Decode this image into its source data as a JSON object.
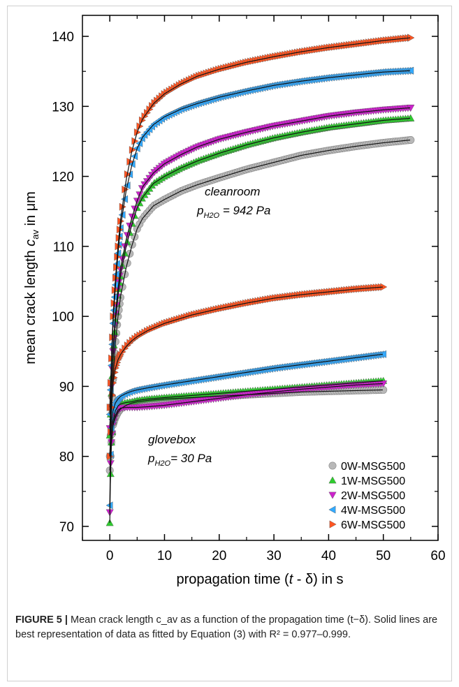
{
  "chart_data": {
    "type": "scatter",
    "xlabel": "propagation time (t - δ) in s",
    "ylabel": "mean crack length c_av in μm",
    "xlim": [
      -5,
      60
    ],
    "ylim": [
      68,
      143
    ],
    "xticks": [
      "0",
      "10",
      "20",
      "30",
      "40",
      "50",
      "60"
    ],
    "yticks": [
      "70",
      "80",
      "90",
      "100",
      "110",
      "120",
      "130",
      "140"
    ],
    "legend_position": "bottom-right",
    "annotations": [
      {
        "label": "cleanroom",
        "sub": "p_H2O = 942 Pa"
      },
      {
        "label": "glovebox",
        "sub": "p_H2O = 30 Pa"
      }
    ],
    "series": [
      {
        "name": "0W-MSG500",
        "marker": "circle",
        "color": "#b8b8b8",
        "groups": [
          {
            "condition": "cleanroom",
            "x_end": 55,
            "points": [
              [
                0,
                80
              ],
              [
                0.3,
                86
              ],
              [
                0.6,
                91
              ],
              [
                1,
                96
              ],
              [
                1.5,
                100
              ],
              [
                2,
                103
              ],
              [
                3,
                107
              ],
              [
                4,
                110
              ],
              [
                5,
                112.5
              ],
              [
                6,
                114
              ],
              [
                8,
                115.8
              ],
              [
                10,
                116.7
              ],
              [
                13,
                117.9
              ],
              [
                16,
                118.8
              ],
              [
                20,
                119.8
              ],
              [
                25,
                121
              ],
              [
                30,
                122
              ],
              [
                35,
                123
              ],
              [
                40,
                123.7
              ],
              [
                45,
                124.3
              ],
              [
                50,
                124.8
              ],
              [
                55,
                125.2
              ]
            ]
          },
          {
            "condition": "glovebox",
            "x_end": 50,
            "points": [
              [
                0,
                78
              ],
              [
                0.3,
                82
              ],
              [
                0.6,
                84.5
              ],
              [
                1,
                85.5
              ],
              [
                1.5,
                86.3
              ],
              [
                2,
                86.8
              ],
              [
                3,
                87.3
              ],
              [
                4,
                87.6
              ],
              [
                5,
                87.8
              ],
              [
                7,
                88
              ],
              [
                10,
                88.2
              ],
              [
                15,
                88.4
              ],
              [
                20,
                88.6
              ],
              [
                25,
                88.8
              ],
              [
                30,
                89
              ],
              [
                35,
                89.2
              ],
              [
                40,
                89.3
              ],
              [
                45,
                89.4
              ],
              [
                50,
                89.5
              ]
            ]
          }
        ]
      },
      {
        "name": "1W-MSG500",
        "marker": "triangle-up",
        "color": "#2ecc2e",
        "groups": [
          {
            "condition": "cleanroom",
            "x_end": 55,
            "points": [
              [
                0,
                83
              ],
              [
                0.3,
                89
              ],
              [
                0.6,
                94
              ],
              [
                1,
                99
              ],
              [
                1.5,
                103
              ],
              [
                2,
                106
              ],
              [
                3,
                110
              ],
              [
                4,
                113
              ],
              [
                5,
                115.5
              ],
              [
                6,
                117
              ],
              [
                8,
                119
              ],
              [
                10,
                120
              ],
              [
                13,
                121.2
              ],
              [
                16,
                122.2
              ],
              [
                20,
                123.3
              ],
              [
                25,
                124.5
              ],
              [
                30,
                125.5
              ],
              [
                35,
                126.3
              ],
              [
                40,
                127
              ],
              [
                45,
                127.5
              ],
              [
                50,
                128
              ],
              [
                55,
                128.3
              ]
            ]
          },
          {
            "condition": "glovebox",
            "x_end": 50,
            "points": [
              [
                0,
                70.5
              ],
              [
                0.1,
                76
              ],
              [
                0.3,
                82
              ],
              [
                0.6,
                85
              ],
              [
                1,
                86.5
              ],
              [
                1.5,
                87.2
              ],
              [
                2,
                87.5
              ],
              [
                3,
                87.7
              ],
              [
                4,
                87.8
              ],
              [
                5,
                88
              ],
              [
                7,
                88.2
              ],
              [
                10,
                88.4
              ],
              [
                15,
                88.7
              ],
              [
                20,
                89
              ],
              [
                25,
                89.3
              ],
              [
                30,
                89.6
              ],
              [
                35,
                89.9
              ],
              [
                40,
                90.2
              ],
              [
                45,
                90.5
              ],
              [
                50,
                90.8
              ]
            ]
          }
        ]
      },
      {
        "name": "2W-MSG500",
        "marker": "triangle-down",
        "color": "#cc22cc",
        "groups": [
          {
            "condition": "cleanroom",
            "x_end": 55,
            "points": [
              [
                0,
                84
              ],
              [
                0.3,
                90
              ],
              [
                0.6,
                95
              ],
              [
                1,
                100
              ],
              [
                1.5,
                104
              ],
              [
                2,
                107
              ],
              [
                3,
                111
              ],
              [
                4,
                114
              ],
              [
                5,
                116.5
              ],
              [
                6,
                118.5
              ],
              [
                8,
                120.5
              ],
              [
                10,
                121.8
              ],
              [
                13,
                123.1
              ],
              [
                16,
                124.2
              ],
              [
                20,
                125.3
              ],
              [
                25,
                126.3
              ],
              [
                30,
                127.2
              ],
              [
                35,
                127.9
              ],
              [
                40,
                128.6
              ],
              [
                45,
                129.1
              ],
              [
                50,
                129.5
              ],
              [
                55,
                129.8
              ]
            ]
          },
          {
            "condition": "glovebox",
            "x_end": 50,
            "points": [
              [
                0,
                72
              ],
              [
                0.1,
                78
              ],
              [
                0.3,
                82
              ],
              [
                0.6,
                84.5
              ],
              [
                1,
                85.8
              ],
              [
                1.5,
                86.6
              ],
              [
                2,
                86.9
              ],
              [
                3,
                87
              ],
              [
                4,
                87
              ],
              [
                5,
                87
              ],
              [
                7,
                87.1
              ],
              [
                10,
                87.3
              ],
              [
                15,
                87.8
              ],
              [
                20,
                88.3
              ],
              [
                25,
                88.8
              ],
              [
                30,
                89.2
              ],
              [
                35,
                89.6
              ],
              [
                40,
                89.9
              ],
              [
                45,
                90.2
              ],
              [
                50,
                90.4
              ]
            ]
          }
        ]
      },
      {
        "name": "4W-MSG500",
        "marker": "triangle-left",
        "color": "#33aaff",
        "groups": [
          {
            "condition": "cleanroom",
            "x_end": 55,
            "points": [
              [
                0,
                86
              ],
              [
                0.3,
                93
              ],
              [
                0.6,
                99
              ],
              [
                1,
                104
              ],
              [
                1.5,
                109
              ],
              [
                2,
                113
              ],
              [
                3,
                118
              ],
              [
                4,
                121.5
              ],
              [
                5,
                124
              ],
              [
                6,
                125.6
              ],
              [
                8,
                127.4
              ],
              [
                10,
                128.5
              ],
              [
                13,
                129.6
              ],
              [
                16,
                130.4
              ],
              [
                20,
                131.3
              ],
              [
                25,
                132.2
              ],
              [
                30,
                133
              ],
              [
                35,
                133.6
              ],
              [
                40,
                134.1
              ],
              [
                45,
                134.5
              ],
              [
                50,
                134.9
              ],
              [
                55,
                135.1
              ]
            ]
          },
          {
            "condition": "glovebox",
            "x_end": 50,
            "points": [
              [
                0,
                73
              ],
              [
                0.1,
                79
              ],
              [
                0.3,
                84
              ],
              [
                0.6,
                86.5
              ],
              [
                1,
                87.6
              ],
              [
                1.5,
                88.2
              ],
              [
                2,
                88.6
              ],
              [
                3,
                89
              ],
              [
                4,
                89.3
              ],
              [
                5,
                89.5
              ],
              [
                7,
                89.8
              ],
              [
                10,
                90.2
              ],
              [
                15,
                90.8
              ],
              [
                20,
                91.4
              ],
              [
                25,
                92
              ],
              [
                30,
                92.6
              ],
              [
                35,
                93.1
              ],
              [
                40,
                93.6
              ],
              [
                45,
                94.1
              ],
              [
                50,
                94.6
              ]
            ]
          }
        ]
      },
      {
        "name": "6W-MSG500",
        "marker": "triangle-right",
        "color": "#ff5522",
        "groups": [
          {
            "condition": "cleanroom",
            "x_end": 55,
            "points": [
              [
                0,
                87
              ],
              [
                0.3,
                94
              ],
              [
                0.6,
                100
              ],
              [
                1,
                105
              ],
              [
                1.5,
                110
              ],
              [
                2,
                114
              ],
              [
                3,
                119.5
              ],
              [
                4,
                123.5
              ],
              [
                5,
                126.3
              ],
              [
                6,
                128.2
              ],
              [
                8,
                130.4
              ],
              [
                10,
                131.8
              ],
              [
                13,
                133.2
              ],
              [
                16,
                134.3
              ],
              [
                20,
                135.3
              ],
              [
                25,
                136.3
              ],
              [
                30,
                137.1
              ],
              [
                35,
                137.8
              ],
              [
                40,
                138.4
              ],
              [
                45,
                138.9
              ],
              [
                50,
                139.4
              ],
              [
                55,
                139.8
              ]
            ]
          },
          {
            "condition": "glovebox",
            "x_end": 50,
            "points": [
              [
                0,
                80
              ],
              [
                0.3,
                87
              ],
              [
                0.6,
                90.5
              ],
              [
                1,
                92.5
              ],
              [
                1.5,
                93.8
              ],
              [
                2,
                94.6
              ],
              [
                3,
                95.7
              ],
              [
                4,
                96.5
              ],
              [
                5,
                97.1
              ],
              [
                7,
                98
              ],
              [
                10,
                99
              ],
              [
                15,
                100.2
              ],
              [
                20,
                101.1
              ],
              [
                25,
                101.9
              ],
              [
                30,
                102.6
              ],
              [
                35,
                103.1
              ],
              [
                40,
                103.5
              ],
              [
                45,
                103.9
              ],
              [
                50,
                104.2
              ]
            ]
          }
        ]
      }
    ]
  },
  "caption": {
    "label": "FIGURE 5 |",
    "text": " Mean crack length c_av as a function of the propagation time (t−δ). Solid lines are best representation of data as fitted by Equation (3) with R² = 0.977–0.999."
  }
}
